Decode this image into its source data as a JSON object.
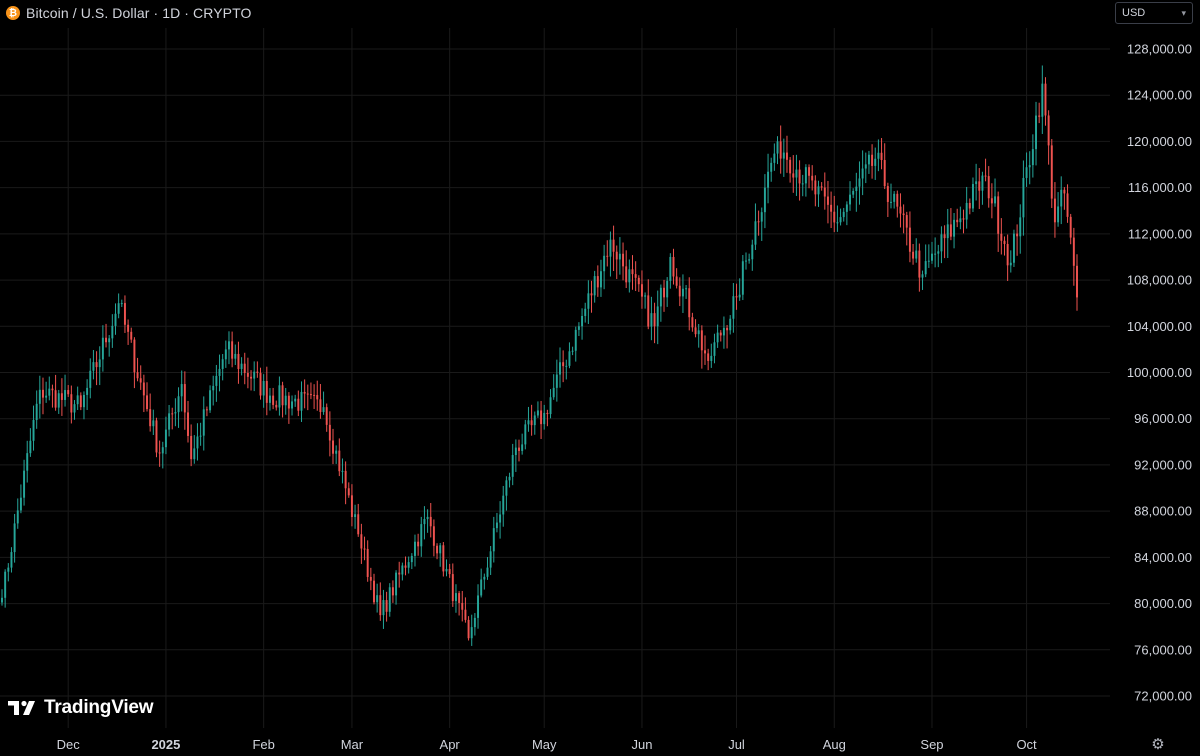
{
  "header": {
    "title": "Bitcoin / U.S. Dollar · 1D · CRYPTO",
    "icon": "bitcoin-icon",
    "icon_glyph": "₿"
  },
  "currency_selector": {
    "value": "USD"
  },
  "brand": {
    "name": "TradingView"
  },
  "colors": {
    "up": "#26a69a",
    "down": "#ef5350",
    "background": "#000000",
    "grid": "#1a1a1a",
    "text": "#d1d4dc"
  },
  "chart_data": {
    "type": "candlestick",
    "symbol": "Bitcoin / U.S. Dollar",
    "interval": "1D",
    "exchange": "CRYPTO",
    "grid": true,
    "ylim": [
      70500,
      130000
    ],
    "y_ticks": [
      72000,
      76000,
      80000,
      84000,
      88000,
      92000,
      96000,
      100000,
      104000,
      108000,
      112000,
      116000,
      120000,
      124000,
      128000
    ],
    "y_tick_labels": [
      "72,000.00",
      "76,000.00",
      "80,000.00",
      "84,000.00",
      "88,000.00",
      "92,000.00",
      "96,000.00",
      "100,000.00",
      "104,000.00",
      "108,000.00",
      "112,000.00",
      "116,000.00",
      "120,000.00",
      "124,000.00",
      "128,000.00"
    ],
    "x_labels": [
      {
        "date": "2024-12-01",
        "label": "Dec"
      },
      {
        "date": "2025-01-01",
        "label": "2025"
      },
      {
        "date": "2025-02-01",
        "label": "Feb"
      },
      {
        "date": "2025-03-01",
        "label": "Mar"
      },
      {
        "date": "2025-04-01",
        "label": "Apr"
      },
      {
        "date": "2025-05-01",
        "label": "May"
      },
      {
        "date": "2025-06-01",
        "label": "Jun"
      },
      {
        "date": "2025-07-01",
        "label": "Jul"
      },
      {
        "date": "2025-08-01",
        "label": "Aug"
      },
      {
        "date": "2025-09-01",
        "label": "Sep"
      },
      {
        "date": "2025-10-01",
        "label": "Oct"
      }
    ],
    "date_range": [
      "2024-11-10",
      "2025-10-17"
    ],
    "key_closes": [
      {
        "date": "2024-11-10",
        "close": 80500
      },
      {
        "date": "2024-11-22",
        "close": 98500
      },
      {
        "date": "2024-12-05",
        "close": 97000
      },
      {
        "date": "2024-12-17",
        "close": 106000
      },
      {
        "date": "2024-12-30",
        "close": 93000
      },
      {
        "date": "2025-01-06",
        "close": 99000
      },
      {
        "date": "2025-01-09",
        "close": 92500
      },
      {
        "date": "2025-01-20",
        "close": 102000
      },
      {
        "date": "2025-02-03",
        "close": 98000
      },
      {
        "date": "2025-02-20",
        "close": 97000
      },
      {
        "date": "2025-03-03",
        "close": 86000
      },
      {
        "date": "2025-03-10",
        "close": 79000
      },
      {
        "date": "2025-03-25",
        "close": 87500
      },
      {
        "date": "2025-04-07",
        "close": 77000
      },
      {
        "date": "2025-04-22",
        "close": 93500
      },
      {
        "date": "2025-05-01",
        "close": 96500
      },
      {
        "date": "2025-05-12",
        "close": 104000
      },
      {
        "date": "2025-05-22",
        "close": 111500
      },
      {
        "date": "2025-06-05",
        "close": 104000
      },
      {
        "date": "2025-06-10",
        "close": 110000
      },
      {
        "date": "2025-06-22",
        "close": 101000
      },
      {
        "date": "2025-07-01",
        "close": 106500
      },
      {
        "date": "2025-07-10",
        "close": 116000
      },
      {
        "date": "2025-07-14",
        "close": 120000
      },
      {
        "date": "2025-08-02",
        "close": 113000
      },
      {
        "date": "2025-08-14",
        "close": 118500
      },
      {
        "date": "2025-08-29",
        "close": 108500
      },
      {
        "date": "2025-09-18",
        "close": 117000
      },
      {
        "date": "2025-09-26",
        "close": 109500
      },
      {
        "date": "2025-10-06",
        "close": 125000
      },
      {
        "date": "2025-10-10",
        "close": 113000
      },
      {
        "date": "2025-10-13",
        "close": 115500
      },
      {
        "date": "2025-10-17",
        "close": 106500
      }
    ]
  }
}
